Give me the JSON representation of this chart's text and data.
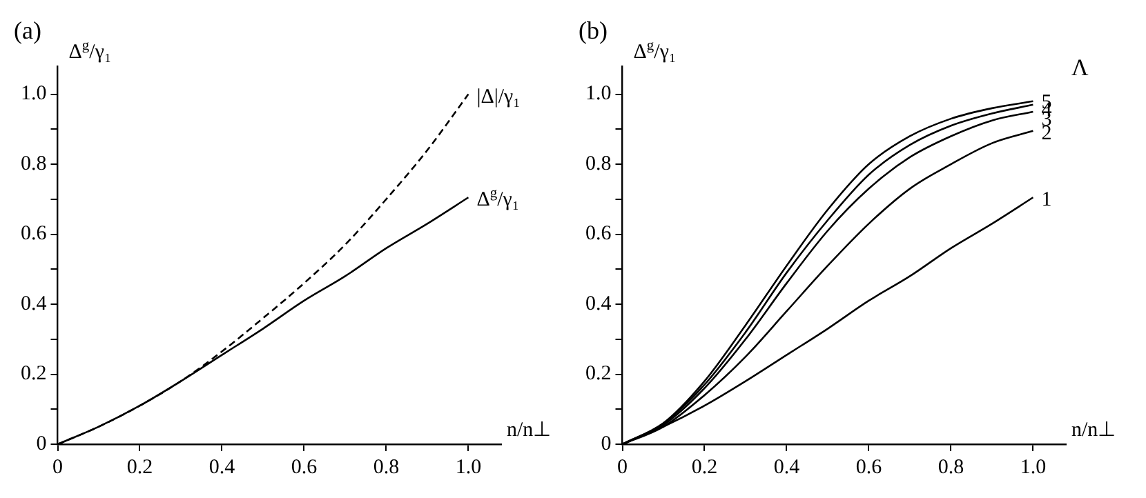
{
  "chart_data": [
    {
      "type": "line",
      "title": "(a)",
      "xlabel": "n/n⊥",
      "ylabel": "Δ$^{g}$/γ₁",
      "x": [
        0,
        0.1,
        0.2,
        0.3,
        0.4,
        0.5,
        0.6,
        0.7,
        0.8,
        0.9,
        1.0
      ],
      "series": [
        {
          "name": "|Δ|/γ₁",
          "color": "#000000",
          "line_style": "dashed",
          "values": [
            0,
            0.05,
            0.11,
            0.18,
            0.265,
            0.36,
            0.46,
            0.57,
            0.7,
            0.84,
            1.0
          ]
        },
        {
          "name": "Δ$^{g}$/γ₁",
          "color": "#000000",
          "line_style": "solid",
          "values": [
            0,
            0.05,
            0.11,
            0.18,
            0.255,
            0.33,
            0.41,
            0.48,
            0.56,
            0.63,
            0.705
          ]
        }
      ],
      "xlim": [
        0,
        1.08
      ],
      "ylim": [
        0,
        1.08
      ],
      "xticks": [
        0,
        0.2,
        0.4,
        0.6,
        0.8,
        {
          "value": 1,
          "label": "1.0"
        }
      ],
      "yticks": [
        0,
        {
          "value": 0.1,
          "label": null
        },
        0.2,
        {
          "value": 0.3,
          "label": null
        },
        0.4,
        {
          "value": 0.5,
          "label": null
        },
        0.6,
        {
          "value": 0.7,
          "label": null
        },
        0.8,
        {
          "value": 0.9,
          "label": null
        },
        {
          "value": 1,
          "label": "1.0"
        }
      ],
      "grid": false,
      "legend": false,
      "marker": "none"
    },
    {
      "type": "line",
      "title": "(b)",
      "xlabel": "n/n⊥",
      "ylabel": "Δ$^{g}$/γ₁",
      "legend_title": "Λ",
      "x": [
        0,
        0.1,
        0.2,
        0.3,
        0.4,
        0.5,
        0.6,
        0.7,
        0.8,
        0.9,
        1.0
      ],
      "series": [
        {
          "name": "1",
          "color": "#000000",
          "values": [
            0,
            0.05,
            0.11,
            0.18,
            0.255,
            0.33,
            0.41,
            0.48,
            0.56,
            0.63,
            0.705
          ]
        },
        {
          "name": "2",
          "color": "#000000",
          "values": [
            0,
            0.05,
            0.14,
            0.25,
            0.38,
            0.51,
            0.63,
            0.73,
            0.8,
            0.86,
            0.895
          ]
        },
        {
          "name": "3",
          "color": "#000000",
          "values": [
            0,
            0.055,
            0.16,
            0.3,
            0.46,
            0.61,
            0.73,
            0.82,
            0.88,
            0.925,
            0.95
          ]
        },
        {
          "name": "4",
          "color": "#000000",
          "values": [
            0,
            0.06,
            0.17,
            0.32,
            0.49,
            0.64,
            0.77,
            0.855,
            0.91,
            0.945,
            0.97
          ]
        },
        {
          "name": "5",
          "color": "#000000",
          "values": [
            0,
            0.06,
            0.18,
            0.34,
            0.51,
            0.67,
            0.8,
            0.88,
            0.93,
            0.96,
            0.98
          ]
        }
      ],
      "xlim": [
        0,
        1.08
      ],
      "ylim": [
        0,
        1.08
      ],
      "xticks": [
        0,
        0.2,
        0.4,
        0.6,
        0.8,
        {
          "value": 1,
          "label": "1.0"
        }
      ],
      "yticks": [
        0,
        {
          "value": 0.1,
          "label": null
        },
        0.2,
        {
          "value": 0.3,
          "label": null
        },
        0.4,
        {
          "value": 0.5,
          "label": null
        },
        0.6,
        {
          "value": 0.7,
          "label": null
        },
        0.8,
        {
          "value": 0.9,
          "label": null
        },
        {
          "value": 1,
          "label": "1.0"
        }
      ],
      "grid": false,
      "legend": false,
      "marker": "none"
    }
  ]
}
